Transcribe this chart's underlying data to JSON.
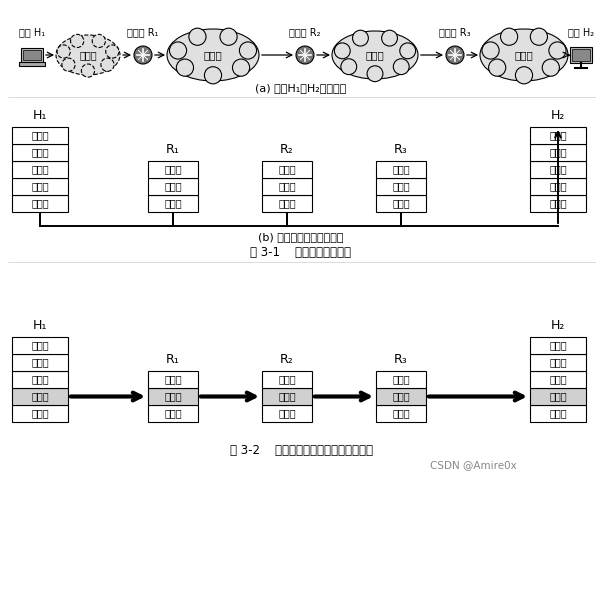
{
  "bg_color": "#ffffff",
  "fig_title_1": "图 3-1    数据链路层的地位",
  "fig_title_2": "图 3-2    只考虑数据在数据链路层的流动",
  "caption_a": "(a) 主机H₁向H₂发送数据",
  "caption_b": "(b) 从层次上看数据的流动",
  "h1_label": "主机 H₁",
  "h2_label": "主机 H₂",
  "r1_label": "路由器 R₁",
  "r2_label": "路由器 R₂",
  "r3_label": "路由器 R₃",
  "net1": "电话网",
  "net2": "局域网",
  "net3": "广域网",
  "net4": "局域网",
  "H1_layers_full": [
    "应用层",
    "运输层",
    "网络层",
    "链路层",
    "物理层"
  ],
  "R_layers": [
    "网络层",
    "链路层",
    "物理层"
  ],
  "H1_label_b": "H₁",
  "H2_label_b": "H₂",
  "R1_label_b": "R₁",
  "R2_label_b": "R₂",
  "R3_label_b": "R₃",
  "watermark": "CSDN @Amire0x",
  "highlight_layer": "链路层"
}
